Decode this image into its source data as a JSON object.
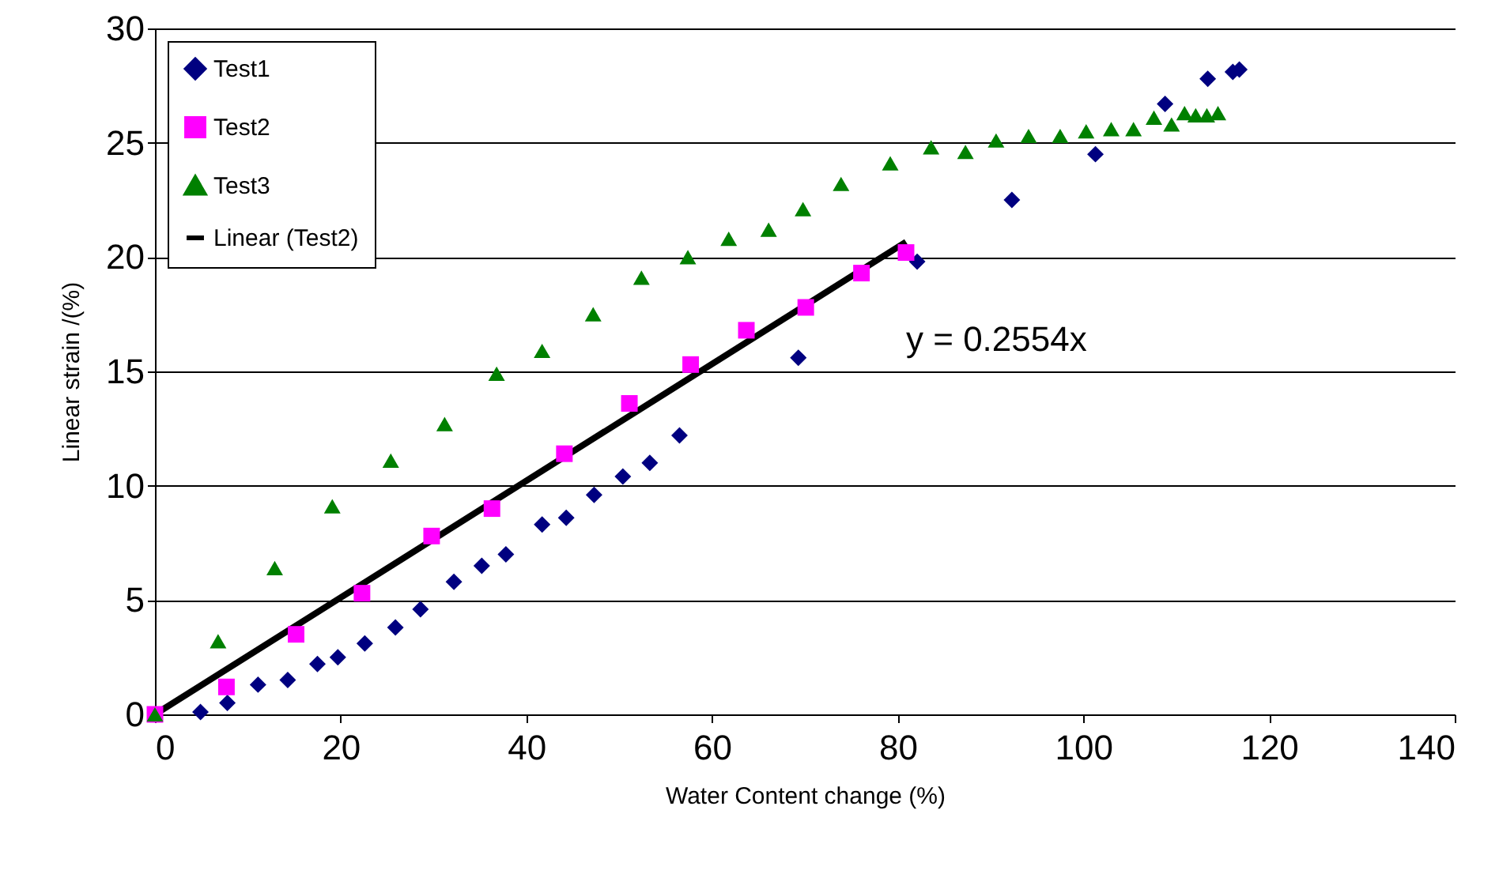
{
  "chart_data": {
    "type": "scatter",
    "xlabel": "Water Content change (%)",
    "ylabel": "Linear strain /(%)",
    "xlim": [
      0,
      140
    ],
    "xticks": [
      0,
      20,
      40,
      60,
      80,
      100,
      120,
      140
    ],
    "ylim": [
      0,
      30
    ],
    "yticks": [
      0,
      5,
      10,
      15,
      20,
      25,
      30
    ],
    "grid": "y",
    "legend": "top left",
    "annotations": [
      "y = 0.2554x"
    ],
    "series": [
      {
        "name": "Test1",
        "marker": "diamond",
        "color": "#000080",
        "x": [
          4.9,
          7.8,
          11.1,
          14.3,
          17.5,
          19.7,
          22.6,
          25.9,
          28.6,
          32.2,
          35.2,
          37.8,
          41.7,
          44.3,
          47.3,
          50.4,
          53.3,
          56.5,
          69.3,
          82.1,
          92.3,
          101.3,
          108.8,
          113.4,
          116.1,
          116.8
        ],
        "values": [
          0.1,
          0.5,
          1.3,
          1.5,
          2.2,
          2.5,
          3.1,
          3.8,
          4.6,
          5.8,
          6.5,
          7.0,
          8.3,
          8.6,
          9.6,
          10.4,
          11.0,
          12.2,
          15.6,
          19.8,
          22.5,
          24.5,
          26.7,
          27.8,
          28.1,
          28.2
        ]
      },
      {
        "name": "Test2",
        "marker": "square",
        "color": "#ff00ff",
        "x": [
          0,
          7.7,
          15.2,
          22.3,
          29.8,
          36.3,
          44.1,
          51.1,
          57.7,
          63.7,
          70.1,
          76.1,
          80.9
        ],
        "values": [
          0,
          1.2,
          3.5,
          5.3,
          7.8,
          9.0,
          11.4,
          13.6,
          15.3,
          16.8,
          17.8,
          19.3,
          20.2
        ]
      },
      {
        "name": "Test3",
        "marker": "triangle",
        "color": "#008000",
        "x": [
          0,
          6.8,
          12.9,
          19.1,
          25.4,
          31.2,
          36.8,
          41.7,
          47.2,
          52.4,
          57.4,
          61.8,
          66.1,
          69.8,
          73.9,
          79.2,
          83.6,
          87.3,
          90.6,
          94.1,
          97.5,
          100.3,
          103.0,
          105.4,
          107.6,
          109.5,
          110.9,
          112.1,
          113.3,
          114.5
        ],
        "values": [
          0,
          3.2,
          6.4,
          9.1,
          11.1,
          12.7,
          14.9,
          15.9,
          17.5,
          19.1,
          20.0,
          20.8,
          21.2,
          22.1,
          23.2,
          24.1,
          24.8,
          24.6,
          25.1,
          25.3,
          25.3,
          25.5,
          25.6,
          25.6,
          26.1,
          25.8,
          26.3,
          26.2,
          26.2,
          26.3
        ]
      },
      {
        "name": "Linear (Test2)",
        "type": "line",
        "marker": "none",
        "color": "#000000",
        "x": [
          0,
          80.9
        ],
        "values": [
          0,
          20.66
        ]
      }
    ]
  }
}
